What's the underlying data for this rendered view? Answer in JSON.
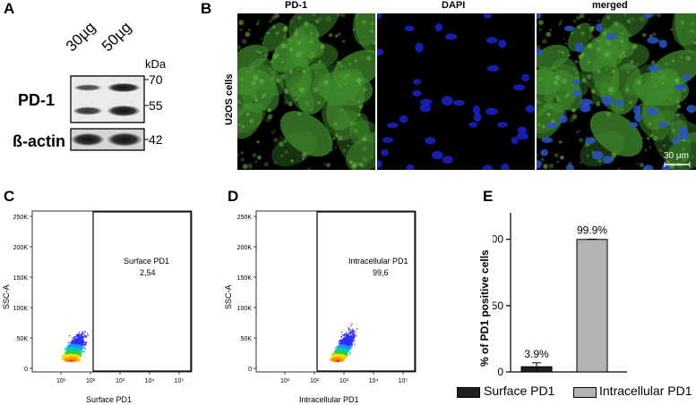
{
  "panel_a": {
    "letter": "A",
    "lanes": [
      "30µg",
      "50µg"
    ],
    "unit": "kDa",
    "markers": [
      "70",
      "55",
      "42"
    ],
    "rows": [
      "PD-1",
      "ß-actin"
    ]
  },
  "panel_b": {
    "letter": "B",
    "columns": [
      "PD-1",
      "DAPI",
      "merged"
    ],
    "row_label": "U2OS cells",
    "scalebar": "30 µm"
  },
  "panel_c": {
    "letter": "C",
    "ylabel": "SSC-A",
    "xlabel": "Surface PD1",
    "yticks": [
      "250K",
      "200K",
      "150K",
      "100K",
      "50K",
      "0"
    ],
    "xticks": [
      "10¹",
      "10²",
      "10³",
      "10⁴",
      "10⁵"
    ],
    "gate_label": "Surface PD1",
    "gate_value": "2,54"
  },
  "panel_d": {
    "letter": "D",
    "ylabel": "SSC-A",
    "xlabel": "Intracellular PD1",
    "yticks": [
      "250K",
      "200K",
      "150K",
      "100K",
      "50K",
      "0"
    ],
    "xticks": [
      "10¹",
      "10²",
      "10³",
      "10⁴",
      "10⁵"
    ],
    "gate_label": "Intracellular PD1",
    "gate_value": "99,6"
  },
  "panel_e": {
    "letter": "E"
  },
  "chart_data": {
    "type": "bar",
    "categories": [
      "Surface PD1",
      "Intracellular PD1"
    ],
    "values": [
      3.9,
      99.9
    ],
    "errors": [
      3.0,
      0.2
    ],
    "data_labels": [
      "3.9%",
      "99.9%"
    ],
    "ylabel": "% of PD1 positive cells",
    "ylim": [
      0,
      120
    ],
    "yticks": [
      0,
      50,
      100
    ],
    "legend_placement": "bottom",
    "colors": [
      "#1f1f1f",
      "#b3b3b3"
    ]
  }
}
